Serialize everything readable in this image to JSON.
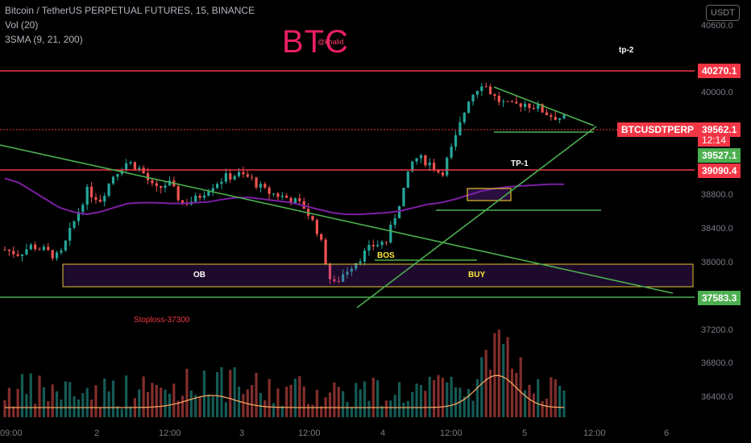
{
  "header": {
    "symbol_line": "Bitcoin / TetherUS PERPETUAL FUTURES, 15, BINANCE",
    "vol_line": "Vol (20)",
    "sma_line": "3SMA (9, 21, 200)"
  },
  "brand": {
    "title": "BTC",
    "author": "@khalid"
  },
  "currency_button": "USDT",
  "price_axis": {
    "ticks": [
      "40600.0",
      "40000.0",
      "38800.0",
      "38400.0",
      "38000.0",
      "37200.0",
      "36800.0",
      "36400.0"
    ]
  },
  "time_axis": {
    "ticks": [
      "09:00",
      "2",
      "12:00",
      "3",
      "12:00",
      "4",
      "12:00",
      "5",
      "12:00",
      "6"
    ]
  },
  "price_tags": {
    "tp2_level": "40270.1",
    "symbol": "BTCUSDTPERP",
    "last": "39562.1",
    "timer": "12:14",
    "sma": "39527.1",
    "tp1_level": "39090.4",
    "stop_level": "37583.3"
  },
  "annotations": {
    "tp2": "tp-2",
    "tp1": "TP-1",
    "ob": "OB",
    "buy": "BUY",
    "bos": "BOS",
    "stoploss": "Stoploss-37300"
  },
  "colors": {
    "up": "#26a69a",
    "down": "#ef5350",
    "level_red": "#f23645",
    "trend_green": "#4caf50",
    "zone": "#e6c229",
    "sma_purple": "#7b1fa2",
    "brand": "#e91e63"
  },
  "chart_data": {
    "type": "candlestick",
    "title": "Bitcoin / TetherUS PERPETUAL FUTURES, 15, BINANCE",
    "ylim": [
      36000,
      40900
    ],
    "levels": [
      40270.1,
      39090.4,
      37583.3
    ],
    "ob_zone": [
      37750,
      38030
    ],
    "last_price": 39562.1,
    "series": [
      {
        "name": "price",
        "values": [
          38000,
          37950,
          38050,
          37980,
          37900,
          38300,
          38700,
          38600,
          38900,
          39050,
          38950,
          38700,
          38800,
          38550,
          38600,
          38750,
          38850,
          38900,
          38850,
          38700,
          38650,
          38600,
          38500,
          38200,
          37550,
          37750,
          37900,
          38050,
          38100,
          38600,
          39100,
          39050,
          38900,
          39300,
          39800,
          40000,
          39800,
          39700,
          39750,
          39700,
          39600,
          39562
        ]
      },
      {
        "name": "3SMA",
        "values": [
          38850,
          38800,
          38700,
          38600,
          38500,
          38450,
          38420,
          38450,
          38500,
          38550,
          38560,
          38560,
          38550,
          38550,
          38560,
          38570,
          38600,
          38620,
          38620,
          38600,
          38580,
          38560,
          38520,
          38480,
          38440,
          38420,
          38420,
          38430,
          38440,
          38460,
          38500,
          38540,
          38560,
          38600,
          38650,
          38700,
          38730,
          38750,
          38760,
          38770,
          38780,
          38780
        ]
      }
    ]
  }
}
